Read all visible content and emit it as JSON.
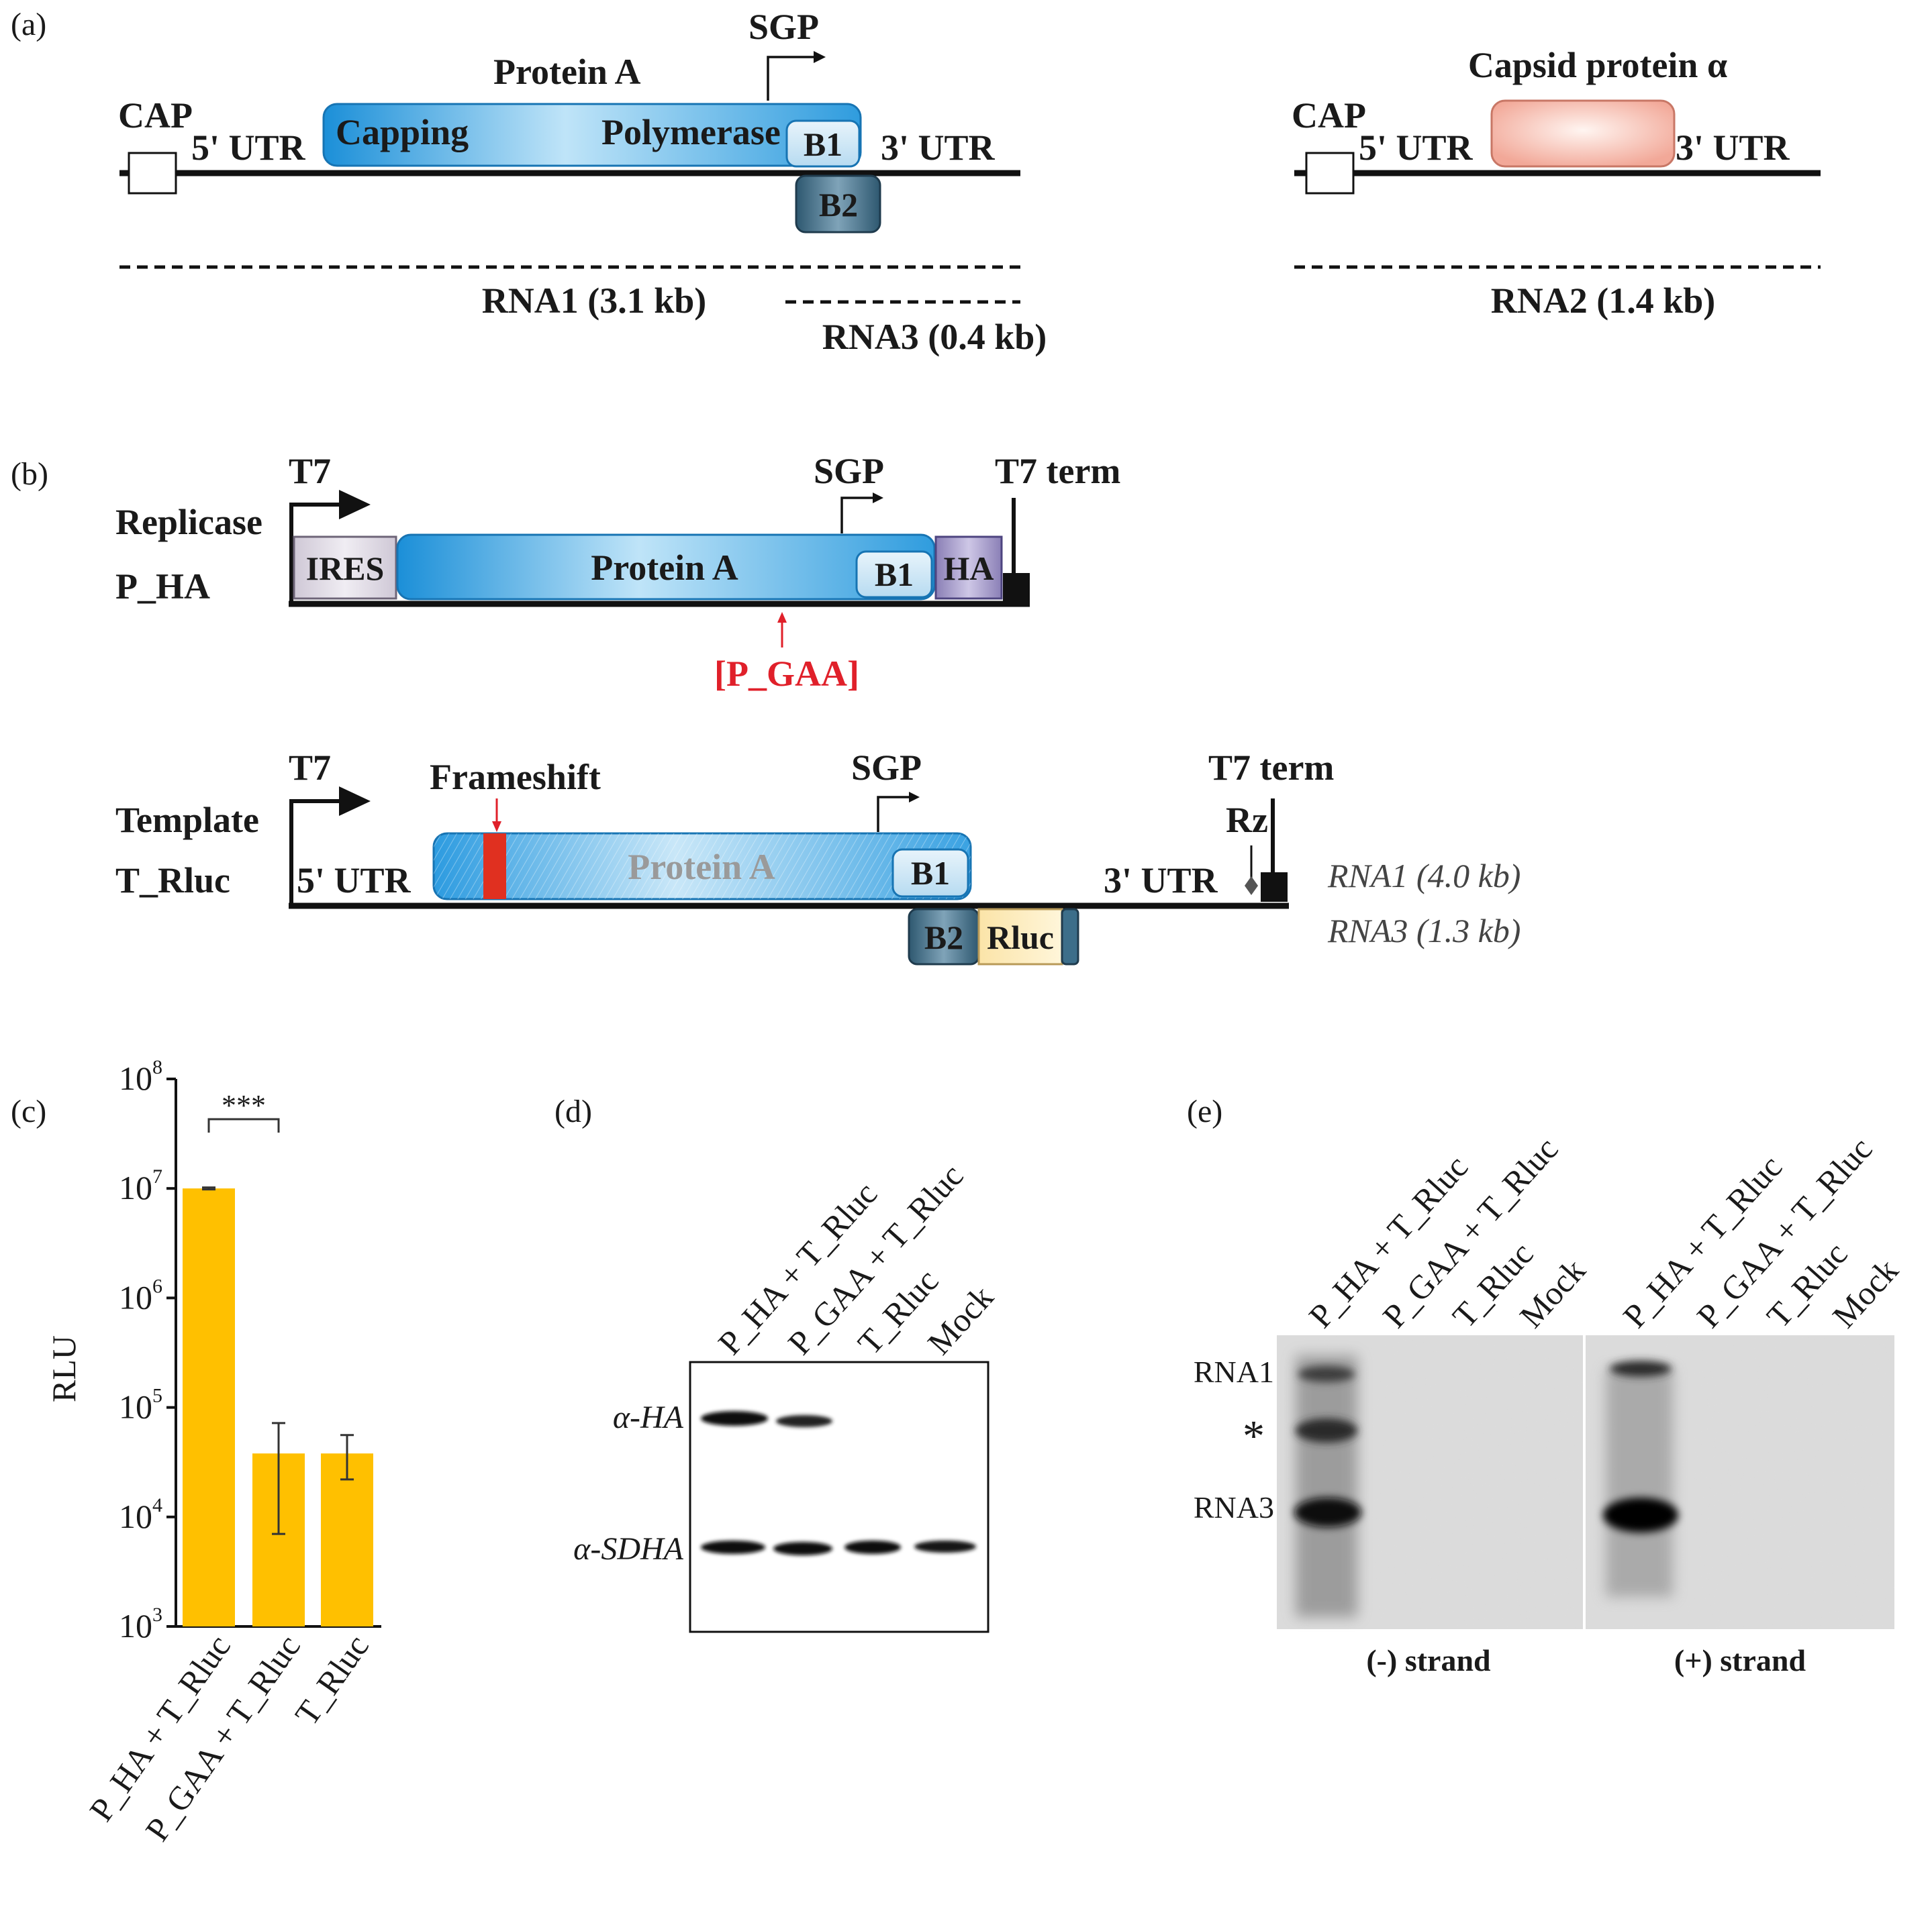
{
  "panels": {
    "a": "(a)",
    "b": "(b)",
    "c": "(c)",
    "d": "(d)",
    "e": "(e)"
  },
  "panel_a": {
    "rna1": {
      "cap": "CAP",
      "utr5": "5' UTR",
      "utr3": "3' UTR",
      "protein_a": "Protein A",
      "capping": "Capping",
      "polymerase": "Polymerase",
      "sgp": "SGP",
      "b1": "B1",
      "b2": "B2",
      "rna1_label": "RNA1 (3.1 kb)",
      "rna3_label": "RNA3 (0.4 kb)"
    },
    "rna2": {
      "cap": "CAP",
      "utr5": "5' UTR",
      "utr3": "3' UTR",
      "capsid": "Capsid protein α",
      "rna2_label": "RNA2 (1.4 kb)"
    }
  },
  "panel_b": {
    "replicase": {
      "t7": "T7",
      "title": "Replicase",
      "name": "P_HA",
      "ires": "IRES",
      "protein_a": "Protein A",
      "b1": "B1",
      "ha": "HA",
      "sgp": "SGP",
      "t7_term": "T7 term",
      "mutant": "[P_GAA]"
    },
    "template": {
      "t7": "T7",
      "title": "Template",
      "name": "T_Rluc",
      "frameshift": "Frameshift",
      "utr5": "5' UTR",
      "utr3": "3' UTR",
      "protein_a": "Protein A",
      "b1": "B1",
      "b2": "B2",
      "rluc": "Rluc",
      "sgp": "SGP",
      "t7_term": "T7 term",
      "rz": "Rz",
      "rna1": "RNA1 (4.0 kb)",
      "rna3": "RNA3 (1.3 kb)"
    }
  },
  "chart_data": {
    "type": "bar",
    "ylabel": "RLU",
    "yscale": "log",
    "ylim": [
      1000,
      100000000
    ],
    "yticks_exp": [
      3,
      4,
      5,
      6,
      7,
      8
    ],
    "ytick_base": "10",
    "categories": [
      "P_HA + T_Rluc",
      "P_GAA + T_Rluc",
      "T_Rluc"
    ],
    "values": [
      10000000,
      38000,
      38000
    ],
    "error_low": [
      9800000,
      7000,
      22000
    ],
    "error_high": [
      10200000,
      72000,
      56000
    ],
    "bar_color": "#FFC000",
    "significance": "***",
    "grid": false
  },
  "panel_d": {
    "lanes": [
      "P_HA + T_Rluc",
      "P_GAA + T_Rluc",
      "T_Rluc",
      "Mock"
    ],
    "rows": [
      "α-HA",
      "α-SDHA"
    ]
  },
  "panel_e": {
    "lanes": [
      "P_HA + T_Rluc",
      "P_GAA + T_Rluc",
      "T_Rluc",
      "Mock"
    ],
    "band_labels": [
      "RNA1",
      "*",
      "RNA3"
    ],
    "minus_strand": "(-) strand",
    "plus_strand": "(+) strand"
  }
}
